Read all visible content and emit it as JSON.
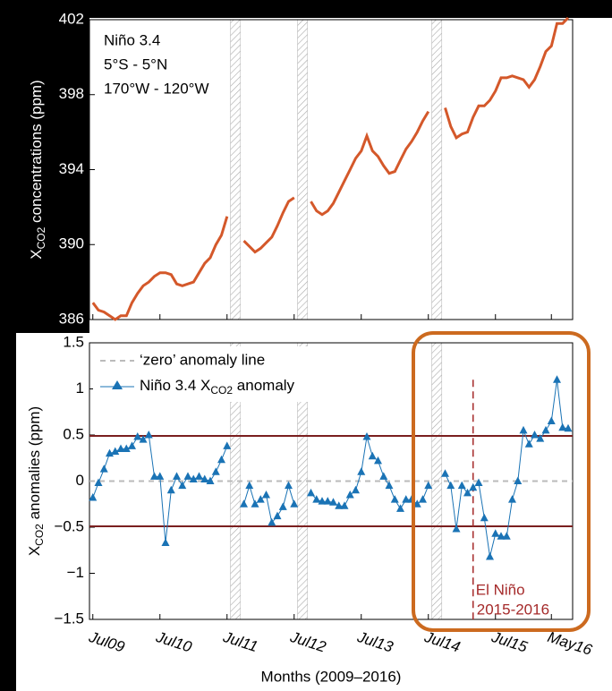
{
  "chart_data": [
    {
      "type": "line",
      "ylabel": [
        "X",
        "CO2",
        " concentrations (ppm)"
      ],
      "annotation": [
        "Niño 3.4",
        "5°S - 5°N",
        "170°W - 120°W"
      ],
      "x": [
        0,
        1,
        2,
        3,
        4,
        5,
        6,
        7,
        8,
        9,
        10,
        11,
        12,
        13,
        14,
        15,
        16,
        17,
        18,
        19,
        20,
        21,
        22,
        23,
        24,
        25,
        26,
        27,
        28,
        29,
        30,
        31,
        32,
        33,
        34,
        35,
        36,
        37,
        38,
        39,
        40,
        41,
        42,
        43,
        44,
        45,
        46,
        47,
        48,
        49,
        50,
        51,
        52,
        53,
        54,
        55,
        56,
        57,
        58,
        59,
        60,
        61,
        62,
        63,
        64,
        65,
        66,
        67,
        68,
        69,
        70,
        71,
        72,
        73,
        74,
        75,
        76,
        77,
        78,
        79,
        80,
        81,
        82,
        83,
        84,
        85
      ],
      "series": [
        {
          "color": "#d4582a",
          "values": [
            386.9,
            386.5,
            386.4,
            386.2,
            386.0,
            386.2,
            386.2,
            386.9,
            387.4,
            387.8,
            388.0,
            388.3,
            388.5,
            388.5,
            388.4,
            387.9,
            387.8,
            387.9,
            388.0,
            388.5,
            389.0,
            389.3,
            390.0,
            390.5,
            391.5,
            null,
            null,
            390.2,
            389.9,
            389.6,
            389.8,
            390.1,
            390.4,
            391.0,
            391.7,
            392.3,
            392.5,
            null,
            null,
            392.3,
            391.8,
            391.6,
            391.8,
            392.2,
            392.8,
            393.4,
            394.0,
            394.6,
            395.0,
            395.8,
            395.0,
            394.7,
            394.2,
            393.8,
            393.9,
            394.5,
            395.1,
            395.5,
            396.0,
            396.6,
            397.1,
            null,
            null,
            397.3,
            396.3,
            395.7,
            395.9,
            396.0,
            396.8,
            397.4,
            397.4,
            397.7,
            398.2,
            398.9,
            398.9,
            399.0,
            398.9,
            398.8,
            398.4,
            398.8,
            399.5,
            400.3,
            400.6,
            401.8,
            401.8,
            402.1
          ]
        }
      ],
      "xlim": [
        -0.6,
        85.8
      ],
      "xticks": [
        0,
        12,
        24,
        36,
        48,
        60,
        72,
        82
      ],
      "ylim": [
        386,
        402
      ],
      "yticks": [
        386,
        390,
        394,
        398,
        402
      ]
    },
    {
      "type": "line",
      "ylabel": [
        "X",
        "CO2",
        " anomalies (ppm)"
      ],
      "xlabel": "Months (2009–2016)",
      "x": [
        0,
        1,
        2,
        3,
        4,
        5,
        6,
        7,
        8,
        9,
        10,
        11,
        12,
        13,
        14,
        15,
        16,
        17,
        18,
        19,
        20,
        21,
        22,
        23,
        24,
        25,
        26,
        27,
        28,
        29,
        30,
        31,
        32,
        33,
        34,
        35,
        36,
        37,
        38,
        39,
        40,
        41,
        42,
        43,
        44,
        45,
        46,
        47,
        48,
        49,
        50,
        51,
        52,
        53,
        54,
        55,
        56,
        57,
        58,
        59,
        60,
        61,
        62,
        63,
        64,
        65,
        66,
        67,
        68,
        69,
        70,
        71,
        72,
        73,
        74,
        75,
        76,
        77,
        78,
        79,
        80,
        81,
        82,
        83,
        84,
        85
      ],
      "reference": {
        "name": "‘zero’ anomaly line",
        "value": 0,
        "color": "#bbbbbb"
      },
      "series": [
        {
          "name": [
            "Niño 3.4 X",
            "CO2",
            " anomaly"
          ],
          "color": "#1a73b5",
          "values": [
            -0.18,
            -0.02,
            0.13,
            0.3,
            0.32,
            0.35,
            0.35,
            0.38,
            0.48,
            0.45,
            0.5,
            0.05,
            0.05,
            -0.67,
            -0.1,
            0.05,
            -0.05,
            0.05,
            0.02,
            0.05,
            0.02,
            0.0,
            0.1,
            0.23,
            0.38,
            null,
            null,
            -0.25,
            -0.05,
            -0.25,
            -0.2,
            -0.15,
            -0.45,
            -0.38,
            -0.28,
            -0.05,
            -0.25,
            null,
            null,
            -0.13,
            -0.2,
            -0.22,
            -0.22,
            -0.23,
            -0.27,
            -0.27,
            -0.15,
            -0.1,
            0.1,
            0.48,
            0.27,
            0.22,
            0.05,
            -0.05,
            -0.2,
            -0.3,
            -0.2,
            -0.2,
            -0.25,
            -0.2,
            -0.05,
            null,
            null,
            0.08,
            -0.05,
            -0.52,
            -0.05,
            -0.13,
            -0.07,
            -0.02,
            -0.4,
            -0.82,
            -0.57,
            -0.6,
            -0.6,
            -0.2,
            0.0,
            0.55,
            0.4,
            0.5,
            0.46,
            0.55,
            0.65,
            1.1,
            0.58,
            0.57
          ]
        }
      ],
      "hlines": {
        "values": [
          0.49,
          -0.49
        ],
        "color": "#7a1f1f"
      },
      "vline": {
        "x": 68,
        "top": 1.1,
        "color": "#a52a2a",
        "label": [
          "El Niño",
          "2015-2016"
        ]
      },
      "xlim": [
        -0.6,
        85.8
      ],
      "xticks": [
        {
          "value": 0,
          "label": "Jul09"
        },
        {
          "value": 12,
          "label": "Jul10"
        },
        {
          "value": 24,
          "label": "Jul11"
        },
        {
          "value": 36,
          "label": "Jul12"
        },
        {
          "value": 48,
          "label": "Jul13"
        },
        {
          "value": 60,
          "label": "Jul14"
        },
        {
          "value": 72,
          "label": "Jul15"
        },
        {
          "value": 82,
          "label": "May16"
        }
      ],
      "ylim": [
        -1.5,
        1.5
      ],
      "yticks": [
        {
          "value": -1.5,
          "label": "−1.5"
        },
        {
          "value": -1,
          "label": "−1"
        },
        {
          "value": -0.5,
          "label": "−0.5"
        },
        0,
        0.5,
        1,
        1.5
      ]
    }
  ]
}
